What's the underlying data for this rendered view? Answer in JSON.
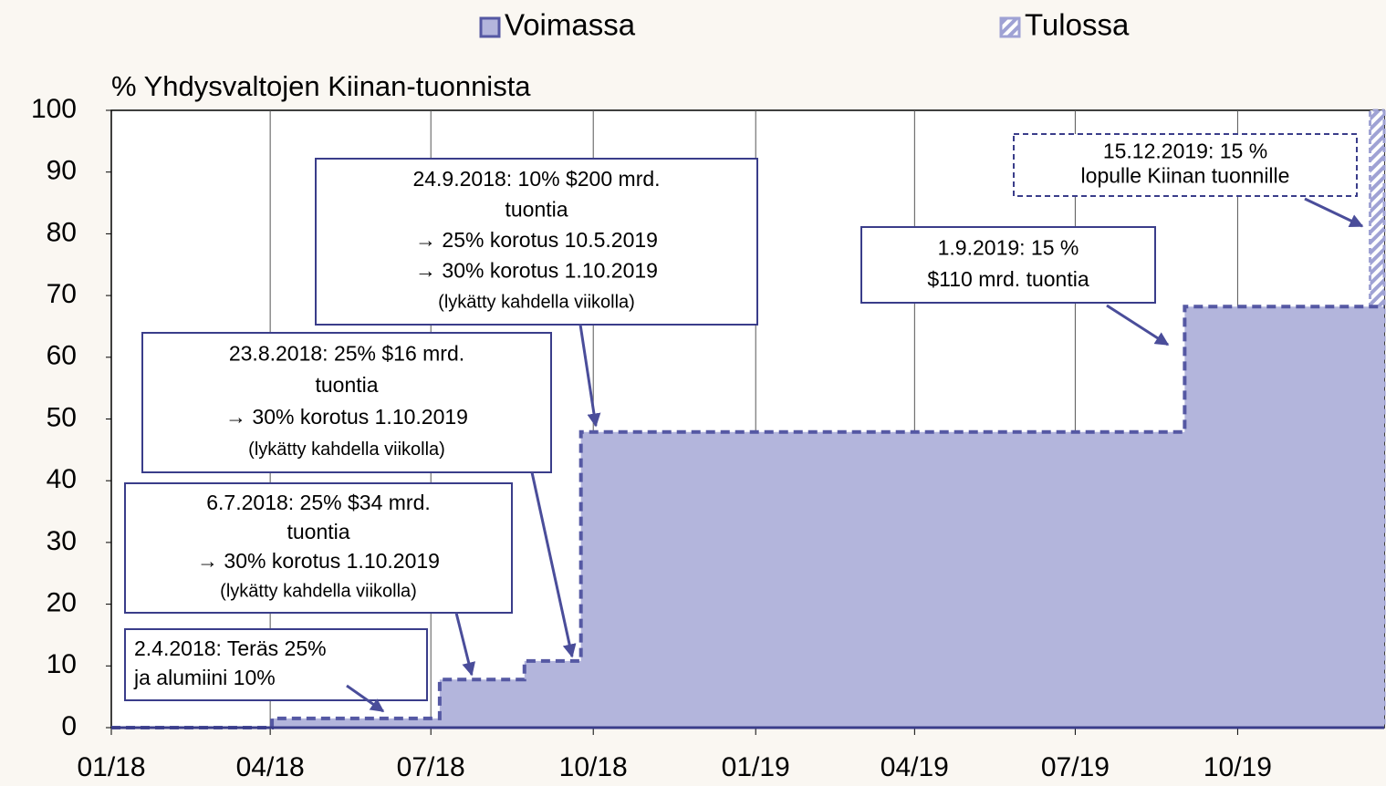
{
  "chart_data": {
    "type": "step-area",
    "y_label": "% Yhdysvaltojen Kiinan-tuonnista",
    "xlim": [
      "2018-01-01",
      "2019-12-23"
    ],
    "xticks": [
      {
        "value": "2018-01-01",
        "label": "01/18"
      },
      {
        "value": "2018-04-01",
        "label": "04/18"
      },
      {
        "value": "2018-07-01",
        "label": "07/18"
      },
      {
        "value": "2018-10-01",
        "label": "10/18"
      },
      {
        "value": "2019-01-01",
        "label": "01/19"
      },
      {
        "value": "2019-04-01",
        "label": "04/19"
      },
      {
        "value": "2019-07-01",
        "label": "07/19"
      },
      {
        "value": "2019-10-01",
        "label": "10/19"
      }
    ],
    "ylim": [
      0,
      100
    ],
    "yticks": [
      0,
      10,
      20,
      30,
      40,
      50,
      60,
      70,
      80,
      90,
      100
    ],
    "grid": "x",
    "series": [
      {
        "name": "Tulossa",
        "color": "#9fa2d4",
        "hatched": true,
        "x": [
          "2019-12-15",
          "2019-12-23"
        ],
        "values": [
          100,
          100
        ]
      },
      {
        "name": "Voimassa",
        "color": "#b3b5dc",
        "line_color": "#5558a3",
        "x": [
          "2018-01-01",
          "2018-04-02",
          "2018-07-06",
          "2018-08-23",
          "2018-09-24",
          "2019-09-01",
          "2019-12-23"
        ],
        "values": [
          0,
          1.5,
          7.8,
          10.8,
          47.9,
          68.2,
          68.2
        ]
      }
    ],
    "annotations": [
      {
        "lines": [
          "2.4.2018: Teräs 25%",
          "ja alumiini 10%"
        ]
      },
      {
        "lines": [
          "6.7.2018: 25% $34 mrd.",
          "tuontia",
          "→ 30% korotus 1.10.2019",
          "(lykätty kahdella viikolla)"
        ]
      },
      {
        "lines": [
          "23.8.2018: 25% $16 mrd.",
          "tuontia",
          "→ 30% korotus 1.10.2019",
          "(lykätty kahdella viikolla)"
        ]
      },
      {
        "lines": [
          "24.9.2018: 10% $200 mrd.",
          "tuontia",
          "→ 25% korotus 10.5.2019",
          "→ 30% korotus 1.10.2019",
          "(lykätty kahdella viikolla)"
        ]
      },
      {
        "lines": [
          "1.9.2019: 15 %",
          "$110 mrd. tuontia"
        ]
      },
      {
        "lines": [
          "15.12.2019: 15 %",
          "lopulle Kiinan tuonnille"
        ]
      }
    ]
  }
}
